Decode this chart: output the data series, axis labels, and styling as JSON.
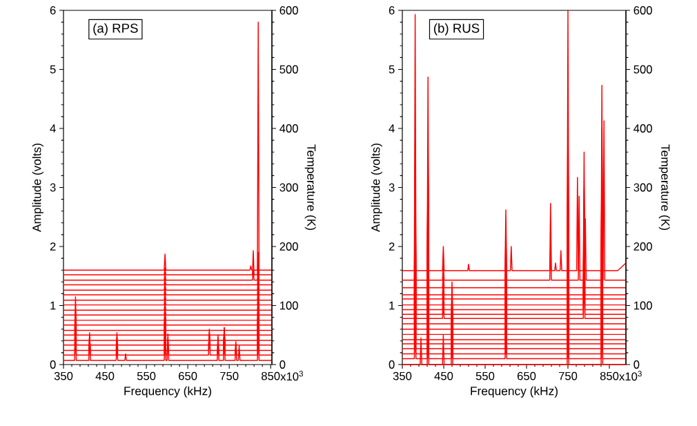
{
  "chart_data": [
    {
      "type": "line",
      "xlabel": "Frequency (kHz)",
      "ylabel": "Amplitude (volts)",
      "y2label": "Temperature (K)",
      "annotations": [
        "(a) RPS",
        "x10$^{3}$"
      ],
      "xlim": [
        350,
        853
      ],
      "ylim": [
        0,
        6
      ],
      "y2lim": [
        0,
        600
      ],
      "xticks": [
        350,
        450,
        550,
        650,
        750,
        850
      ],
      "yticks": [
        0,
        1,
        2,
        3,
        4,
        5,
        6
      ],
      "y2ticks": [
        0,
        100,
        200,
        300,
        400,
        500,
        600
      ],
      "series": [
        {
          "color": "#ff0000",
          "x": [
            350,
            377,
            379,
            381,
            411,
            413,
            415,
            477,
            479,
            481,
            498,
            500,
            502,
            593,
            595,
            597,
            600,
            602,
            604,
            721,
            723,
            725,
            736,
            738,
            740,
            764,
            766,
            768,
            772,
            774,
            776,
            818,
            820,
            822,
            853
          ],
          "values": [
            0.07,
            0.07,
            0.6,
            0.07,
            0.07,
            0.54,
            0.07,
            0.07,
            0.3,
            0.07,
            0.07,
            0.18,
            0.07,
            0.07,
            0.5,
            0.07,
            0.07,
            0.52,
            0.07,
            0.07,
            0.5,
            0.07,
            0.07,
            0.63,
            0.07,
            0.07,
            0.39,
            0.07,
            0.07,
            0.32,
            0.07,
            0.07,
            0.6,
            0.07,
            0.07
          ]
        },
        {
          "color": "#ff0000",
          "x": [
            350,
            377,
            379,
            381,
            411,
            413,
            415,
            477,
            479,
            481,
            593,
            595,
            597,
            600,
            602,
            604,
            700,
            702,
            704,
            721,
            723,
            725,
            736,
            738,
            740,
            764,
            766,
            768,
            818,
            820,
            822,
            853
          ],
          "values": [
            0.16,
            0.16,
            0.55,
            0.16,
            0.16,
            0.5,
            0.16,
            0.16,
            0.45,
            0.16,
            0.16,
            0.55,
            0.16,
            0.16,
            0.45,
            0.16,
            0.16,
            0.6,
            0.16,
            0.16,
            0.45,
            0.16,
            0.16,
            0.55,
            0.16,
            0.16,
            0.35,
            0.16,
            0.16,
            0.7,
            0.16,
            0.16
          ]
        },
        {
          "color": "#ff0000",
          "x": [
            350,
            377,
            379,
            381,
            411,
            413,
            415,
            477,
            479,
            481,
            593,
            595,
            597,
            700,
            702,
            704,
            736,
            738,
            740,
            818,
            820,
            822,
            853
          ],
          "values": [
            0.24,
            0.24,
            0.6,
            0.24,
            0.24,
            0.5,
            0.24,
            0.24,
            0.54,
            0.24,
            0.24,
            0.6,
            0.24,
            0.24,
            0.55,
            0.24,
            0.24,
            0.6,
            0.24,
            0.24,
            0.8,
            0.24,
            0.24
          ]
        },
        {
          "color": "#ff0000",
          "x": [
            350,
            377,
            379,
            381,
            593,
            595,
            597,
            700,
            702,
            704,
            736,
            738,
            740,
            818,
            820,
            822,
            853
          ],
          "values": [
            0.33,
            0.33,
            0.7,
            0.33,
            0.33,
            0.7,
            0.33,
            0.33,
            0.5,
            0.33,
            0.33,
            0.62,
            0.33,
            0.33,
            0.9,
            0.33,
            0.33
          ]
        },
        {
          "color": "#ff0000",
          "x": [
            350,
            377,
            379,
            381,
            593,
            595,
            597,
            818,
            820,
            822,
            853
          ],
          "values": [
            0.41,
            0.41,
            0.8,
            0.41,
            0.41,
            0.8,
            0.41,
            0.41,
            1.0,
            0.41,
            0.41
          ]
        },
        {
          "color": "#ff0000",
          "x": [
            350,
            377,
            379,
            381,
            593,
            595,
            597,
            818,
            820,
            822,
            853
          ],
          "values": [
            0.5,
            0.5,
            0.9,
            0.5,
            0.5,
            0.9,
            0.5,
            0.5,
            1.1,
            0.5,
            0.5
          ]
        },
        {
          "color": "#ff0000",
          "x": [
            350,
            377,
            379,
            381,
            593,
            595,
            597,
            818,
            820,
            822,
            853
          ],
          "values": [
            0.58,
            0.58,
            1.15,
            0.58,
            0.58,
            1.0,
            0.58,
            0.58,
            1.2,
            0.58,
            0.58
          ]
        },
        {
          "color": "#ff0000",
          "x": [
            350,
            593,
            595,
            597,
            818,
            820,
            822,
            853
          ],
          "values": [
            0.67,
            0.67,
            0.79,
            0.67,
            0.67,
            0.87,
            0.67,
            0.67
          ]
        },
        {
          "color": "#ff0000",
          "x": [
            350,
            593,
            595,
            597,
            818,
            820,
            822,
            853
          ],
          "values": [
            0.75,
            0.75,
            0.87,
            0.75,
            0.75,
            0.95,
            0.75,
            0.75
          ]
        },
        {
          "color": "#ff0000",
          "x": [
            350,
            593,
            595,
            597,
            818,
            820,
            822,
            853
          ],
          "values": [
            0.84,
            0.84,
            0.96,
            0.84,
            0.84,
            1.04,
            0.84,
            0.84
          ]
        },
        {
          "color": "#ff0000",
          "x": [
            350,
            593,
            595,
            597,
            818,
            820,
            822,
            853
          ],
          "values": [
            0.92,
            0.92,
            1.04,
            0.92,
            0.92,
            1.12,
            0.92,
            0.92
          ]
        },
        {
          "color": "#ff0000",
          "x": [
            350,
            593,
            595,
            597,
            818,
            820,
            822,
            853
          ],
          "values": [
            1.01,
            1.01,
            1.13,
            1.01,
            1.01,
            1.21,
            1.01,
            1.01
          ]
        },
        {
          "color": "#ff0000",
          "x": [
            350,
            593,
            595,
            597,
            818,
            820,
            822,
            853
          ],
          "values": [
            1.09,
            1.09,
            1.21,
            1.09,
            1.09,
            1.29,
            1.09,
            1.09
          ]
        },
        {
          "color": "#ff0000",
          "x": [
            350,
            593,
            595,
            597,
            818,
            820,
            822,
            853
          ],
          "values": [
            1.18,
            1.18,
            1.3,
            1.18,
            1.18,
            1.38,
            1.18,
            1.18
          ]
        },
        {
          "color": "#ff0000",
          "x": [
            350,
            593,
            595,
            597,
            818,
            820,
            822,
            853
          ],
          "values": [
            1.26,
            1.26,
            1.38,
            1.26,
            1.26,
            1.46,
            1.26,
            1.26
          ]
        },
        {
          "color": "#ff0000",
          "x": [
            350,
            593,
            595,
            597,
            818,
            820,
            822,
            853
          ],
          "values": [
            1.35,
            1.35,
            1.47,
            1.35,
            1.35,
            1.55,
            1.35,
            1.35
          ]
        },
        {
          "color": "#ff0000",
          "x": [
            350,
            593,
            595,
            597,
            806,
            808,
            810,
            818,
            820,
            822,
            853
          ],
          "values": [
            1.43,
            1.43,
            1.55,
            1.43,
            1.43,
            1.6,
            1.43,
            1.43,
            1.75,
            1.43,
            1.43
          ]
        },
        {
          "color": "#ff0000",
          "x": [
            350,
            593,
            595,
            597,
            806,
            808,
            810,
            818,
            820,
            822,
            853
          ],
          "values": [
            1.52,
            1.52,
            1.64,
            1.52,
            1.52,
            1.93,
            1.52,
            1.52,
            1.9,
            1.52,
            1.52
          ]
        },
        {
          "color": "#ff0000",
          "x": [
            350,
            593,
            595,
            597,
            800,
            802,
            804,
            818,
            820,
            822,
            853
          ],
          "values": [
            1.6,
            1.6,
            1.87,
            1.6,
            1.6,
            1.67,
            1.6,
            1.6,
            5.8,
            1.6,
            1.6
          ]
        }
      ]
    },
    {
      "type": "line",
      "xlabel": "Frequency (kHz)",
      "ylabel": "Amplitude (volts)",
      "y2label": "Temperature (K)",
      "annotations": [
        "(b) RUS",
        "x10$^{3}$"
      ],
      "xlim": [
        350,
        890
      ],
      "ylim": [
        0,
        6
      ],
      "y2lim": [
        0,
        600
      ],
      "xticks": [
        350,
        450,
        550,
        650,
        750,
        850
      ],
      "yticks": [
        0,
        1,
        2,
        3,
        4,
        5,
        6
      ],
      "y2ticks": [
        0,
        100,
        200,
        300,
        400,
        500,
        600
      ],
      "series": [
        {
          "color": "#ff0000",
          "x": [
            350,
            393,
            395,
            397,
            410,
            412,
            414,
            447,
            449,
            451,
            468,
            470,
            472,
            748,
            750,
            752,
            830,
            832,
            834,
            890
          ],
          "values": [
            0,
            0,
            0.45,
            0,
            0,
            0.6,
            0,
            0,
            0.5,
            0,
            0,
            0.55,
            0,
            0,
            0.6,
            0,
            0,
            1.0,
            0,
            0
          ]
        },
        {
          "color": "#ff0000",
          "x": [
            350,
            379,
            381,
            383,
            410,
            412,
            414,
            468,
            470,
            472,
            598,
            600,
            602,
            748,
            750,
            752,
            830,
            832,
            834,
            890
          ],
          "values": [
            0.1,
            0.1,
            0.6,
            0.1,
            0.1,
            0.8,
            0.1,
            0.1,
            0.7,
            0.1,
            0.1,
            0.4,
            0.1,
            0.1,
            0.9,
            0.1,
            0.1,
            1.2,
            0.1,
            0.1
          ]
        },
        {
          "color": "#ff0000",
          "x": [
            350,
            379,
            381,
            383,
            410,
            412,
            414,
            468,
            470,
            472,
            598,
            600,
            602,
            748,
            750,
            752,
            830,
            832,
            834,
            890
          ],
          "values": [
            0.18,
            0.18,
            0.8,
            0.18,
            0.18,
            1.0,
            0.18,
            0.18,
            0.8,
            0.18,
            0.18,
            0.5,
            0.18,
            0.18,
            1.1,
            0.18,
            0.18,
            1.4,
            0.18,
            0.18
          ]
        },
        {
          "color": "#ff0000",
          "x": [
            350,
            379,
            381,
            383,
            410,
            412,
            414,
            468,
            470,
            472,
            598,
            600,
            602,
            748,
            750,
            752,
            830,
            832,
            834,
            890
          ],
          "values": [
            0.27,
            0.27,
            1.0,
            0.27,
            0.27,
            1.2,
            0.27,
            0.27,
            0.9,
            0.27,
            0.27,
            0.6,
            0.27,
            0.27,
            1.3,
            0.27,
            0.27,
            1.6,
            0.27,
            0.27
          ]
        },
        {
          "color": "#ff0000",
          "x": [
            350,
            379,
            381,
            383,
            410,
            412,
            414,
            468,
            470,
            472,
            598,
            600,
            602,
            748,
            750,
            752,
            830,
            832,
            834,
            890
          ],
          "values": [
            0.35,
            0.35,
            1.2,
            0.35,
            0.35,
            1.4,
            0.35,
            0.35,
            1.0,
            0.35,
            0.35,
            0.8,
            0.35,
            0.35,
            1.5,
            0.35,
            0.35,
            1.8,
            0.35,
            0.35
          ]
        },
        {
          "color": "#ff0000",
          "x": [
            350,
            379,
            381,
            383,
            410,
            412,
            414,
            468,
            470,
            472,
            598,
            600,
            602,
            748,
            750,
            752,
            830,
            832,
            834,
            890
          ],
          "values": [
            0.42,
            0.42,
            1.4,
            0.42,
            0.42,
            1.6,
            0.42,
            0.42,
            1.1,
            0.42,
            0.42,
            0.8,
            0.42,
            0.42,
            1.7,
            0.42,
            0.42,
            2.0,
            0.42,
            0.42
          ]
        },
        {
          "color": "#ff0000",
          "x": [
            350,
            379,
            381,
            383,
            410,
            412,
            414,
            468,
            470,
            472,
            598,
            600,
            602,
            748,
            750,
            752,
            830,
            832,
            834,
            890
          ],
          "values": [
            0.51,
            0.51,
            1.6,
            0.51,
            0.51,
            1.8,
            0.51,
            0.51,
            1.2,
            0.51,
            0.51,
            0.9,
            0.51,
            0.51,
            1.9,
            0.51,
            0.51,
            2.2,
            0.51,
            0.51
          ]
        },
        {
          "color": "#ff0000",
          "x": [
            350,
            379,
            381,
            383,
            410,
            412,
            414,
            468,
            470,
            472,
            598,
            600,
            602,
            748,
            750,
            752,
            830,
            832,
            834,
            890
          ],
          "values": [
            0.6,
            0.6,
            1.8,
            0.6,
            0.6,
            2.0,
            0.6,
            0.6,
            1.3,
            0.6,
            0.6,
            1.0,
            0.6,
            0.6,
            2.1,
            0.6,
            0.6,
            2.4,
            0.6,
            0.6
          ]
        },
        {
          "color": "#ff0000",
          "x": [
            350,
            379,
            381,
            383,
            410,
            412,
            414,
            468,
            470,
            472,
            598,
            600,
            602,
            748,
            750,
            752,
            830,
            832,
            834,
            890
          ],
          "values": [
            0.69,
            0.69,
            2.0,
            0.69,
            0.69,
            2.2,
            0.69,
            0.69,
            1.4,
            0.69,
            0.69,
            1.1,
            0.69,
            0.69,
            2.3,
            0.69,
            0.69,
            2.6,
            0.69,
            0.69
          ]
        },
        {
          "color": "#ff0000",
          "x": [
            350,
            379,
            381,
            383,
            410,
            412,
            414,
            447,
            449,
            451,
            598,
            600,
            602,
            748,
            750,
            752,
            787,
            789,
            791,
            830,
            832,
            834,
            890
          ],
          "values": [
            0.78,
            0.78,
            2.2,
            0.78,
            0.78,
            2.4,
            0.78,
            0.78,
            1.0,
            0.78,
            0.78,
            1.2,
            0.78,
            0.78,
            2.5,
            0.78,
            0.78,
            1.8,
            0.78,
            0.78,
            2.8,
            0.78,
            0.78
          ]
        },
        {
          "color": "#ff0000",
          "x": [
            350,
            379,
            381,
            383,
            410,
            412,
            414,
            447,
            449,
            451,
            598,
            600,
            602,
            748,
            750,
            752,
            787,
            789,
            791,
            830,
            832,
            834,
            890
          ],
          "values": [
            0.85,
            0.85,
            2.4,
            0.85,
            0.85,
            2.6,
            0.85,
            0.85,
            1.1,
            0.85,
            0.85,
            1.3,
            0.85,
            0.85,
            2.7,
            0.85,
            0.85,
            2.0,
            0.85,
            0.85,
            3.0,
            0.85,
            0.85
          ]
        },
        {
          "color": "#ff0000",
          "x": [
            350,
            379,
            381,
            383,
            410,
            412,
            414,
            447,
            449,
            451,
            598,
            600,
            602,
            748,
            750,
            752,
            787,
            789,
            791,
            830,
            832,
            834,
            890
          ],
          "values": [
            0.93,
            0.93,
            2.6,
            0.93,
            0.93,
            2.8,
            0.93,
            0.93,
            1.2,
            0.93,
            0.93,
            1.4,
            0.93,
            0.93,
            2.9,
            0.93,
            0.93,
            2.2,
            0.93,
            0.93,
            3.2,
            0.93,
            0.93
          ]
        },
        {
          "color": "#ff0000",
          "x": [
            350,
            379,
            381,
            383,
            410,
            412,
            414,
            447,
            449,
            451,
            598,
            600,
            602,
            748,
            750,
            752,
            787,
            789,
            791,
            830,
            832,
            834,
            890
          ],
          "values": [
            1.01,
            1.01,
            2.8,
            1.01,
            1.01,
            3.0,
            1.01,
            1.01,
            1.3,
            1.01,
            1.01,
            1.5,
            1.01,
            1.01,
            3.1,
            1.01,
            1.01,
            2.3,
            1.01,
            1.01,
            3.4,
            1.01,
            1.01
          ]
        },
        {
          "color": "#ff0000",
          "x": [
            350,
            379,
            381,
            383,
            410,
            412,
            414,
            447,
            449,
            451,
            598,
            600,
            602,
            748,
            750,
            752,
            787,
            789,
            791,
            830,
            832,
            834,
            890
          ],
          "values": [
            1.11,
            1.11,
            3.0,
            1.11,
            1.11,
            3.2,
            1.11,
            1.11,
            1.4,
            1.11,
            1.11,
            1.6,
            1.11,
            1.11,
            3.3,
            1.11,
            1.11,
            2.6,
            1.11,
            1.11,
            3.6,
            1.11,
            1.11
          ]
        },
        {
          "color": "#ff0000",
          "x": [
            350,
            379,
            381,
            383,
            410,
            412,
            414,
            447,
            449,
            451,
            598,
            600,
            602,
            748,
            750,
            752,
            787,
            789,
            791,
            830,
            832,
            834,
            890
          ],
          "values": [
            1.18,
            1.18,
            3.2,
            1.18,
            1.18,
            3.3,
            1.18,
            1.18,
            1.45,
            1.18,
            1.18,
            1.7,
            1.18,
            1.18,
            3.5,
            1.18,
            1.18,
            2.8,
            1.18,
            1.18,
            3.8,
            1.18,
            1.18
          ]
        },
        {
          "color": "#ff0000",
          "x": [
            350,
            379,
            381,
            383,
            410,
            412,
            414,
            447,
            449,
            451,
            598,
            600,
            602,
            748,
            750,
            752,
            787,
            789,
            791,
            830,
            832,
            834,
            890
          ],
          "values": [
            1.3,
            1.3,
            3.4,
            1.3,
            1.3,
            3.5,
            1.3,
            1.3,
            1.55,
            1.3,
            1.3,
            1.9,
            1.3,
            1.3,
            3.8,
            1.3,
            1.3,
            3.0,
            1.3,
            1.3,
            4.0,
            1.3,
            1.3
          ]
        },
        {
          "color": "#ff0000",
          "x": [
            350,
            379,
            381,
            383,
            410,
            412,
            414,
            447,
            449,
            451,
            598,
            600,
            602,
            706,
            708,
            710,
            748,
            750,
            752,
            775,
            777,
            779,
            790,
            792,
            794,
            835,
            837,
            839,
            890
          ],
          "values": [
            1.43,
            1.43,
            3.8,
            1.43,
            1.43,
            3.7,
            1.43,
            1.43,
            1.7,
            1.43,
            1.43,
            2.2,
            1.43,
            1.43,
            2.0,
            1.43,
            1.43,
            4.4,
            1.43,
            1.43,
            2.85,
            1.43,
            1.43,
            2.47,
            1.43,
            1.43,
            4.13,
            1.43,
            1.43
          ]
        },
        {
          "color": "#ff0000",
          "x": [
            350,
            379,
            381,
            383,
            410,
            412,
            414,
            447,
            449,
            451,
            508,
            510,
            512,
            598,
            600,
            602,
            611,
            613,
            615,
            706,
            708,
            710,
            718,
            720,
            722,
            731,
            733,
            735,
            748,
            750,
            752,
            771,
            773,
            775,
            787,
            789,
            791,
            830,
            832,
            834,
            870,
            890
          ],
          "values": [
            1.59,
            1.59,
            5.93,
            1.59,
            1.59,
            4.87,
            1.59,
            1.59,
            2.0,
            1.59,
            1.59,
            1.7,
            1.59,
            1.59,
            2.62,
            1.59,
            1.59,
            2.0,
            1.59,
            1.59,
            2.73,
            1.59,
            1.59,
            1.72,
            1.59,
            1.59,
            1.93,
            1.59,
            1.59,
            6.0,
            1.59,
            1.59,
            3.17,
            1.59,
            1.59,
            3.6,
            1.59,
            1.59,
            4.73,
            1.59,
            1.59,
            1.72
          ]
        }
      ]
    }
  ]
}
